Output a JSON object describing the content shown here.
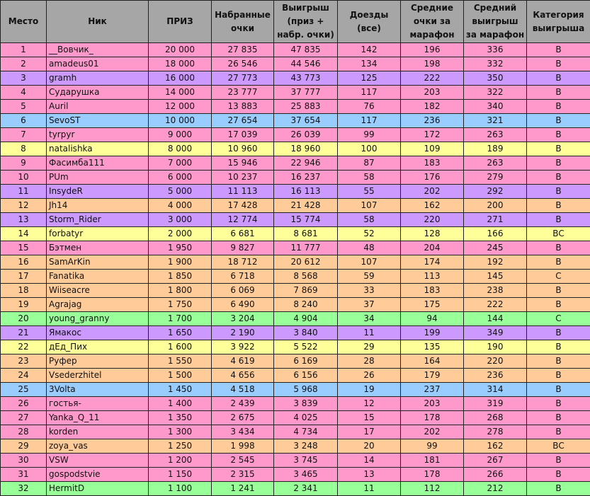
{
  "colors": {
    "P": "#ff99cc",
    "V": "#cc99ff",
    "B": "#99ccff",
    "Y": "#ffff99",
    "O": "#ffcc99",
    "G": "#99ff99",
    "header": "#a6a6a6"
  },
  "headers": [
    "Место",
    "Ник",
    "ПРИЗ",
    "Набранные очки",
    "Выигрыш (приз + набр. очки)",
    "Доезды (все)",
    "Средние очки за марафон",
    "Средний выигрыш за марафон",
    "Категория выигрыша"
  ],
  "rows": [
    {
      "c": "P",
      "v": [
        "1",
        "__Вовчик_",
        "20 000",
        "27 835",
        "47 835",
        "142",
        "196",
        "336",
        "B"
      ]
    },
    {
      "c": "P",
      "v": [
        "2",
        "amadeus01",
        "18 000",
        "26 546",
        "44 546",
        "134",
        "198",
        "332",
        "B"
      ]
    },
    {
      "c": "V",
      "v": [
        "3",
        "gramh",
        "16 000",
        "27 773",
        "43 773",
        "125",
        "222",
        "350",
        "B"
      ]
    },
    {
      "c": "P",
      "v": [
        "4",
        "Сударушка",
        "14 000",
        "23 777",
        "37 777",
        "117",
        "203",
        "322",
        "B"
      ]
    },
    {
      "c": "P",
      "v": [
        "5",
        "Auril",
        "12 000",
        "13 883",
        "25 883",
        "76",
        "182",
        "340",
        "B"
      ]
    },
    {
      "c": "B",
      "v": [
        "6",
        "SevoST",
        "10 000",
        "27 654",
        "37 654",
        "117",
        "236",
        "321",
        "B"
      ]
    },
    {
      "c": "P",
      "v": [
        "7",
        "tyrpyr",
        "9 000",
        "17 039",
        "26 039",
        "99",
        "172",
        "263",
        "B"
      ]
    },
    {
      "c": "Y",
      "v": [
        "8",
        "natalishka",
        "8 000",
        "10 960",
        "18 960",
        "100",
        "109",
        "189",
        "B"
      ]
    },
    {
      "c": "P",
      "v": [
        "9",
        "Фасимба111",
        "7 000",
        "15 946",
        "22 946",
        "87",
        "183",
        "263",
        "B"
      ]
    },
    {
      "c": "P",
      "v": [
        "10",
        "PUm",
        "6 000",
        "10 237",
        "16 237",
        "58",
        "176",
        "279",
        "B"
      ]
    },
    {
      "c": "V",
      "v": [
        "11",
        "InsydeR",
        "5 000",
        "11 113",
        "16 113",
        "55",
        "202",
        "292",
        "B"
      ]
    },
    {
      "c": "O",
      "v": [
        "12",
        "Jh14",
        "4 000",
        "17 428",
        "21 428",
        "107",
        "162",
        "200",
        "B"
      ]
    },
    {
      "c": "V",
      "v": [
        "13",
        "Storm_Rider",
        "3 000",
        "12 774",
        "15 774",
        "58",
        "220",
        "271",
        "B"
      ]
    },
    {
      "c": "Y",
      "v": [
        "14",
        "forbatyr",
        "2 000",
        "6 681",
        "8 681",
        "52",
        "128",
        "166",
        "BC"
      ]
    },
    {
      "c": "P",
      "v": [
        "15",
        "Бэтмен",
        "1 950",
        "9 827",
        "11 777",
        "48",
        "204",
        "245",
        "B"
      ]
    },
    {
      "c": "O",
      "v": [
        "16",
        "SamArKin",
        "1 900",
        "18 712",
        "20 612",
        "107",
        "174",
        "192",
        "B"
      ]
    },
    {
      "c": "O",
      "v": [
        "17",
        "Fanatika",
        "1 850",
        "6 718",
        "8 568",
        "59",
        "113",
        "145",
        "C"
      ]
    },
    {
      "c": "O",
      "v": [
        "18",
        "Wiiseacre",
        "1 800",
        "6 069",
        "7 869",
        "33",
        "183",
        "238",
        "B"
      ]
    },
    {
      "c": "O",
      "v": [
        "19",
        "Agrajag",
        "1 750",
        "6 490",
        "8 240",
        "37",
        "175",
        "222",
        "B"
      ]
    },
    {
      "c": "G",
      "v": [
        "20",
        "young_granny",
        "1 700",
        "3 204",
        "4 904",
        "34",
        "94",
        "144",
        "C"
      ]
    },
    {
      "c": "V",
      "v": [
        "21",
        "Ямакос",
        "1 650",
        "2 190",
        "3 840",
        "11",
        "199",
        "349",
        "B"
      ]
    },
    {
      "c": "Y",
      "v": [
        "22",
        "дЕд_Пих",
        "1 600",
        "3 922",
        "5 522",
        "29",
        "135",
        "190",
        "B"
      ]
    },
    {
      "c": "O",
      "v": [
        "23",
        "Руфер",
        "1 550",
        "4 619",
        "6 169",
        "28",
        "164",
        "220",
        "B"
      ]
    },
    {
      "c": "O",
      "v": [
        "24",
        "Vsederzhitel",
        "1 500",
        "4 656",
        "6 156",
        "26",
        "179",
        "236",
        "B"
      ]
    },
    {
      "c": "B",
      "v": [
        "25",
        "3Volta",
        "1 450",
        "4 518",
        "5 968",
        "19",
        "237",
        "314",
        "B"
      ]
    },
    {
      "c": "P",
      "v": [
        "26",
        "гостья-",
        "1 400",
        "2 439",
        "3 839",
        "12",
        "203",
        "319",
        "B"
      ]
    },
    {
      "c": "P",
      "v": [
        "27",
        "Yanka_Q_11",
        "1 350",
        "2 675",
        "4 025",
        "15",
        "178",
        "268",
        "B"
      ]
    },
    {
      "c": "P",
      "v": [
        "28",
        "korden",
        "1 300",
        "3 434",
        "4 734",
        "17",
        "202",
        "278",
        "B"
      ]
    },
    {
      "c": "O",
      "v": [
        "29",
        "zoya_vas",
        "1 250",
        "1 998",
        "3 248",
        "20",
        "99",
        "162",
        "BC"
      ]
    },
    {
      "c": "P",
      "v": [
        "30",
        "VSW",
        "1 200",
        "2 545",
        "3 745",
        "14",
        "181",
        "267",
        "B"
      ]
    },
    {
      "c": "P",
      "v": [
        "31",
        "gospodstvie",
        "1 150",
        "2 315",
        "3 465",
        "13",
        "178",
        "266",
        "B"
      ]
    },
    {
      "c": "G",
      "v": [
        "32",
        "HermitD",
        "1 100",
        "1 241",
        "2 341",
        "11",
        "112",
        "212",
        "B"
      ]
    }
  ]
}
